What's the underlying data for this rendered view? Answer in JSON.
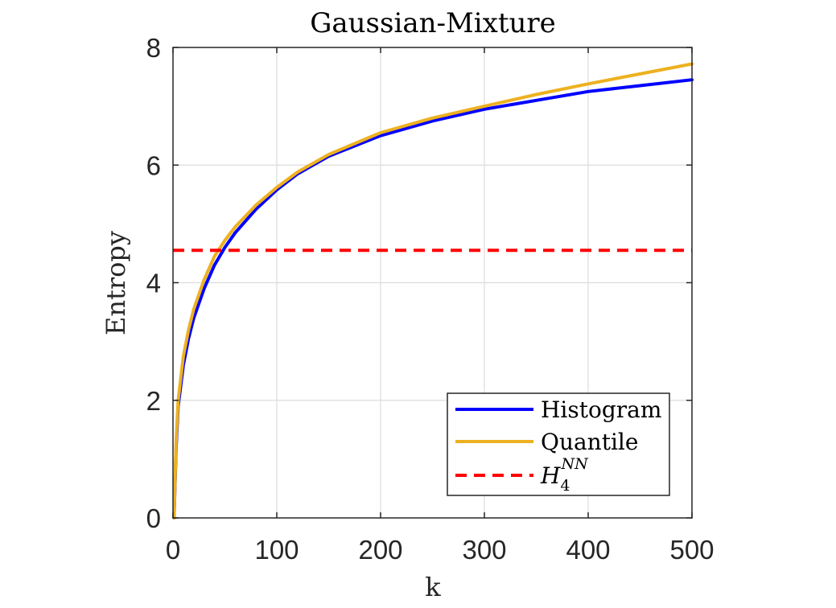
{
  "chart_data": {
    "type": "line",
    "title": "Gaussian-Mixture",
    "xlabel": "k",
    "ylabel": "Entropy",
    "xlim": [
      0,
      500
    ],
    "ylim": [
      0,
      8
    ],
    "xticks": [
      0,
      100,
      200,
      300,
      400,
      500
    ],
    "yticks": [
      0,
      2,
      4,
      6,
      8
    ],
    "xtick_labels": [
      "0",
      "100",
      "200",
      "300",
      "400",
      "500"
    ],
    "ytick_labels": [
      "0",
      "2",
      "4",
      "6",
      "8"
    ],
    "grid": true,
    "legend_position": "bottom-right",
    "series": [
      {
        "name": "Histogram",
        "color": "#0000ff",
        "style": "solid",
        "x": [
          1,
          3,
          5,
          10,
          15,
          20,
          30,
          40,
          50,
          60,
          80,
          100,
          120,
          150,
          200,
          250,
          300,
          350,
          400,
          450,
          500
        ],
        "y": [
          0.0,
          1.2,
          1.9,
          2.6,
          3.05,
          3.4,
          3.9,
          4.3,
          4.6,
          4.85,
          5.25,
          5.58,
          5.85,
          6.15,
          6.5,
          6.75,
          6.95,
          7.1,
          7.25,
          7.35,
          7.45
        ]
      },
      {
        "name": "Quantile",
        "color": "#edb120",
        "style": "solid",
        "x": [
          1,
          3,
          5,
          10,
          15,
          20,
          30,
          40,
          50,
          60,
          80,
          100,
          120,
          150,
          200,
          250,
          300,
          350,
          400,
          450,
          500
        ],
        "y": [
          0.0,
          1.3,
          2.0,
          2.75,
          3.2,
          3.55,
          4.05,
          4.45,
          4.72,
          4.95,
          5.32,
          5.62,
          5.88,
          6.18,
          6.55,
          6.8,
          7.0,
          7.2,
          7.38,
          7.55,
          7.72
        ]
      },
      {
        "name": "H4NN",
        "name_main": "H",
        "name_sub": "4",
        "name_sup": "NN",
        "color": "#ff0000",
        "style": "dashed",
        "x": [
          0,
          500
        ],
        "y": [
          4.55,
          4.55
        ]
      }
    ]
  }
}
